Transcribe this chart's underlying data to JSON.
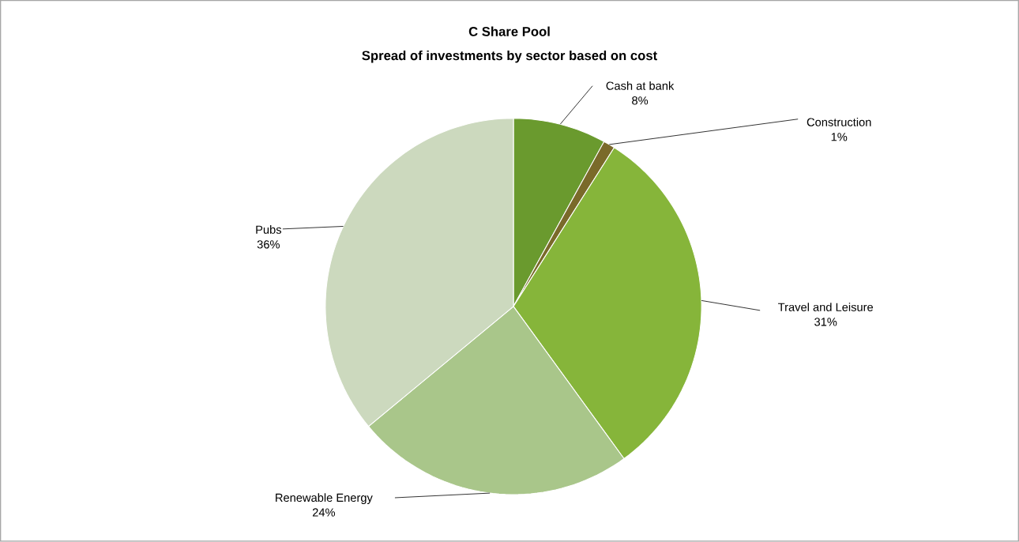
{
  "chart_data": {
    "type": "pie",
    "title": "C Share Pool",
    "subtitle": "Spread of investments by sector based on cost",
    "categories": [
      "Cash at bank",
      "Construction",
      "Travel and Leisure",
      "Renewable Energy",
      "Pubs"
    ],
    "values": [
      8,
      1,
      31,
      24,
      36
    ],
    "colors": [
      "#6a9a2e",
      "#7a6a2a",
      "#86b53a",
      "#a9c68a",
      "#ccd9be"
    ],
    "value_labels": [
      "8%",
      "1%",
      "31%",
      "24%",
      "36%"
    ]
  }
}
